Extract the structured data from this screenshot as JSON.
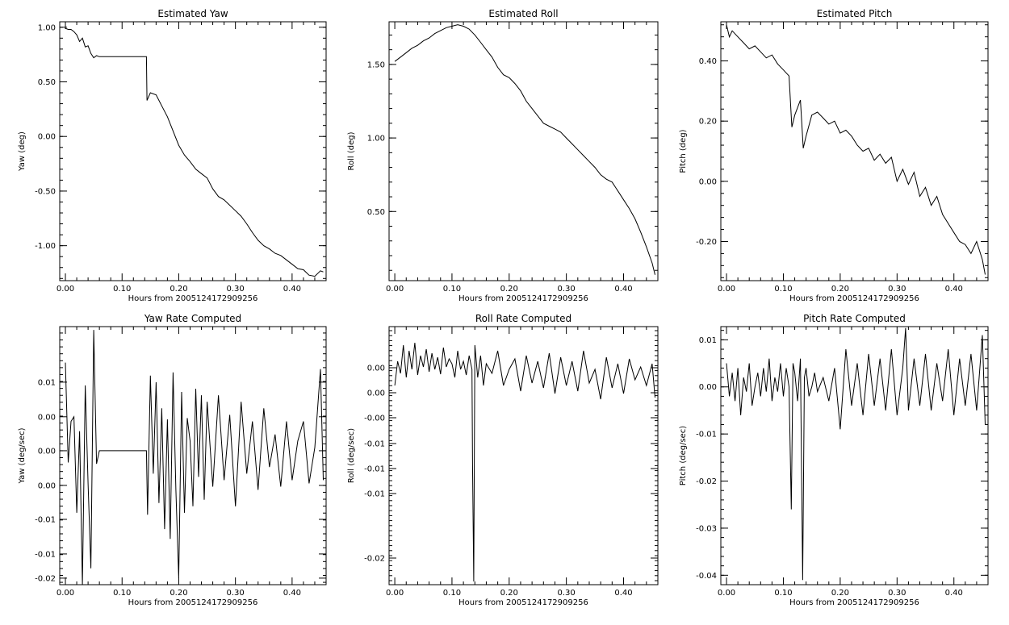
{
  "chart_data": [
    {
      "type": "line",
      "title": "Estimated Yaw",
      "xlabel": "Hours from 2005124172909256",
      "ylabel": "Yaw (deg)",
      "xlim": [
        -0.01,
        0.46
      ],
      "ylim": [
        -1.32,
        1.05
      ],
      "xticks": [
        "0.00",
        "0.10",
        "0.20",
        "0.30",
        "0.40"
      ],
      "xtick_values": [
        0.0,
        0.1,
        0.2,
        0.3,
        0.4
      ],
      "yticks": [
        "1.00",
        "0.50",
        "0.00",
        "-0.50",
        "-1.00"
      ],
      "ytick_values": [
        1.0,
        0.5,
        0.0,
        -0.5,
        -1.0
      ],
      "grid": false,
      "series": [
        {
          "x": [
            0.0,
            0.005,
            0.01,
            0.015,
            0.02,
            0.025,
            0.03,
            0.035,
            0.04,
            0.045,
            0.05,
            0.055,
            0.06,
            0.1,
            0.143,
            0.144,
            0.15,
            0.16,
            0.17,
            0.18,
            0.19,
            0.2,
            0.21,
            0.22,
            0.23,
            0.24,
            0.25,
            0.26,
            0.27,
            0.28,
            0.29,
            0.3,
            0.31,
            0.32,
            0.33,
            0.34,
            0.35,
            0.36,
            0.37,
            0.38,
            0.39,
            0.4,
            0.41,
            0.42,
            0.43,
            0.44,
            0.45,
            0.455
          ],
          "y": [
            0.99,
            0.98,
            0.98,
            0.96,
            0.93,
            0.87,
            0.9,
            0.82,
            0.83,
            0.76,
            0.72,
            0.74,
            0.73,
            0.73,
            0.73,
            0.33,
            0.4,
            0.38,
            0.28,
            0.18,
            0.05,
            -0.08,
            -0.17,
            -0.23,
            -0.3,
            -0.34,
            -0.38,
            -0.48,
            -0.55,
            -0.58,
            -0.63,
            -0.68,
            -0.73,
            -0.8,
            -0.88,
            -0.95,
            -1.0,
            -1.03,
            -1.07,
            -1.09,
            -1.13,
            -1.17,
            -1.21,
            -1.22,
            -1.27,
            -1.28,
            -1.23,
            -1.24
          ]
        }
      ]
    },
    {
      "type": "line",
      "title": "Estimated Roll",
      "xlabel": "Hours from 2005124172909256",
      "ylabel": "Roll (deg)",
      "xlim": [
        -0.01,
        0.46
      ],
      "ylim": [
        0.03,
        1.79
      ],
      "xticks": [
        "0.00",
        "0.10",
        "0.20",
        "0.30",
        "0.40"
      ],
      "xtick_values": [
        0.0,
        0.1,
        0.2,
        0.3,
        0.4
      ],
      "yticks": [
        "1.50",
        "1.00",
        "0.50"
      ],
      "ytick_values": [
        1.5,
        1.0,
        0.5
      ],
      "grid": false,
      "series": [
        {
          "x": [
            0.0,
            0.01,
            0.02,
            0.03,
            0.04,
            0.05,
            0.06,
            0.07,
            0.08,
            0.09,
            0.1,
            0.11,
            0.12,
            0.13,
            0.14,
            0.15,
            0.16,
            0.17,
            0.18,
            0.19,
            0.2,
            0.21,
            0.22,
            0.23,
            0.24,
            0.25,
            0.26,
            0.27,
            0.28,
            0.29,
            0.3,
            0.31,
            0.32,
            0.33,
            0.34,
            0.35,
            0.36,
            0.37,
            0.38,
            0.39,
            0.4,
            0.41,
            0.42,
            0.43,
            0.44,
            0.45,
            0.455
          ],
          "y": [
            1.52,
            1.55,
            1.58,
            1.61,
            1.63,
            1.66,
            1.68,
            1.71,
            1.73,
            1.75,
            1.76,
            1.77,
            1.76,
            1.74,
            1.7,
            1.65,
            1.6,
            1.55,
            1.48,
            1.43,
            1.41,
            1.37,
            1.32,
            1.25,
            1.2,
            1.15,
            1.1,
            1.08,
            1.06,
            1.04,
            1.0,
            0.96,
            0.92,
            0.88,
            0.84,
            0.8,
            0.75,
            0.72,
            0.7,
            0.64,
            0.58,
            0.52,
            0.45,
            0.36,
            0.26,
            0.15,
            0.07
          ]
        }
      ]
    },
    {
      "type": "line",
      "title": "Estimated Pitch",
      "xlabel": "Hours from 2005124172909256",
      "ylabel": "Pitch (deg)",
      "xlim": [
        -0.01,
        0.46
      ],
      "ylim": [
        -0.33,
        0.53
      ],
      "xticks": [
        "0.00",
        "0.10",
        "0.20",
        "0.30",
        "0.40"
      ],
      "xtick_values": [
        0.0,
        0.1,
        0.2,
        0.3,
        0.4
      ],
      "yticks": [
        "0.40",
        "0.20",
        "0.00",
        "-0.20"
      ],
      "ytick_values": [
        0.4,
        0.2,
        0.0,
        -0.2
      ],
      "grid": false,
      "series": [
        {
          "x": [
            0.0,
            0.005,
            0.01,
            0.02,
            0.03,
            0.04,
            0.05,
            0.06,
            0.07,
            0.08,
            0.09,
            0.1,
            0.11,
            0.115,
            0.12,
            0.13,
            0.135,
            0.14,
            0.15,
            0.16,
            0.17,
            0.18,
            0.19,
            0.2,
            0.21,
            0.22,
            0.23,
            0.24,
            0.25,
            0.26,
            0.27,
            0.28,
            0.29,
            0.3,
            0.31,
            0.32,
            0.33,
            0.34,
            0.35,
            0.36,
            0.37,
            0.38,
            0.39,
            0.4,
            0.41,
            0.42,
            0.43,
            0.44,
            0.45,
            0.455
          ],
          "y": [
            0.52,
            0.48,
            0.5,
            0.48,
            0.46,
            0.44,
            0.45,
            0.43,
            0.41,
            0.42,
            0.39,
            0.37,
            0.35,
            0.18,
            0.22,
            0.27,
            0.11,
            0.15,
            0.22,
            0.23,
            0.21,
            0.19,
            0.2,
            0.16,
            0.17,
            0.15,
            0.12,
            0.1,
            0.11,
            0.07,
            0.09,
            0.06,
            0.08,
            0.0,
            0.04,
            -0.01,
            0.03,
            -0.05,
            -0.02,
            -0.08,
            -0.05,
            -0.11,
            -0.14,
            -0.17,
            -0.2,
            -0.21,
            -0.24,
            -0.2,
            -0.26,
            -0.31
          ]
        }
      ]
    },
    {
      "type": "line",
      "title": "Yaw Rate Computed",
      "xlabel": "Hours from 2005124172909256",
      "ylabel": "Yaw (deg/sec)",
      "xlim": [
        -0.01,
        0.46
      ],
      "ylim": [
        -0.0205,
        0.019
      ],
      "xticks": [
        "0.00",
        "0.10",
        "0.20",
        "0.30",
        "0.40"
      ],
      "xtick_values": [
        0.0,
        0.1,
        0.2,
        0.3,
        0.4
      ],
      "yticks": [
        "0.01",
        "0.00",
        "0.00",
        "0.00",
        "-0.01",
        "-0.01",
        "-0.02"
      ],
      "ytick_values": [
        0.0105,
        0.0052,
        0.0,
        -0.0053,
        -0.0105,
        -0.0158,
        -0.0195
      ],
      "grid": false,
      "series": [
        {
          "x": [
            0.0,
            0.005,
            0.01,
            0.015,
            0.02,
            0.025,
            0.03,
            0.035,
            0.04,
            0.045,
            0.05,
            0.055,
            0.06,
            0.1,
            0.143,
            0.145,
            0.15,
            0.155,
            0.16,
            0.165,
            0.17,
            0.175,
            0.18,
            0.185,
            0.19,
            0.195,
            0.2,
            0.205,
            0.21,
            0.215,
            0.22,
            0.225,
            0.23,
            0.235,
            0.24,
            0.245,
            0.25,
            0.26,
            0.27,
            0.28,
            0.29,
            0.3,
            0.31,
            0.32,
            0.33,
            0.34,
            0.35,
            0.36,
            0.37,
            0.38,
            0.39,
            0.4,
            0.41,
            0.42,
            0.43,
            0.44,
            0.45,
            0.455
          ],
          "y": [
            0.0135,
            -0.0018,
            0.0045,
            0.0052,
            -0.0095,
            0.003,
            -0.0205,
            0.01,
            -0.005,
            -0.018,
            0.0185,
            -0.002,
            0.0,
            0.0,
            0.0,
            -0.0098,
            0.0115,
            -0.0035,
            0.0105,
            -0.008,
            0.0065,
            -0.012,
            0.0048,
            -0.0135,
            0.012,
            -0.006,
            -0.0195,
            0.009,
            -0.0095,
            0.005,
            0.0015,
            -0.0085,
            0.0095,
            -0.004,
            0.0085,
            -0.0075,
            0.0075,
            -0.0055,
            0.0085,
            -0.0045,
            0.0055,
            -0.0085,
            0.0075,
            -0.0035,
            0.0045,
            -0.006,
            0.0065,
            -0.0025,
            0.0025,
            -0.0055,
            0.0045,
            -0.0045,
            0.0015,
            0.0045,
            -0.005,
            0.0005,
            0.0125,
            -0.0045
          ]
        }
      ]
    },
    {
      "type": "line",
      "title": "Roll Rate Computed",
      "xlabel": "Hours from 2005124172909256",
      "ylabel": "Roll (deg/sec)",
      "xlim": [
        -0.01,
        0.46
      ],
      "ylim": [
        -0.0222,
        0.0098
      ],
      "xticks": [
        "0.00",
        "0.10",
        "0.20",
        "0.30",
        "0.40"
      ],
      "xtick_values": [
        0.0,
        0.1,
        0.2,
        0.3,
        0.4
      ],
      "yticks": [
        "0.00",
        "0.00",
        "-0.00",
        "-0.01",
        "-0.01",
        "-0.01",
        "-0.02"
      ],
      "ytick_values": [
        0.0047,
        0.0016,
        -0.0015,
        -0.0047,
        -0.0078,
        -0.0109,
        -0.0189
      ],
      "grid": false,
      "series": [
        {
          "x": [
            0.0,
            0.005,
            0.01,
            0.015,
            0.02,
            0.025,
            0.03,
            0.035,
            0.04,
            0.045,
            0.05,
            0.055,
            0.06,
            0.065,
            0.07,
            0.075,
            0.08,
            0.085,
            0.09,
            0.095,
            0.1,
            0.105,
            0.11,
            0.115,
            0.12,
            0.125,
            0.13,
            0.135,
            0.136,
            0.138,
            0.14,
            0.145,
            0.15,
            0.155,
            0.16,
            0.17,
            0.18,
            0.19,
            0.2,
            0.21,
            0.22,
            0.23,
            0.24,
            0.25,
            0.26,
            0.27,
            0.28,
            0.29,
            0.3,
            0.31,
            0.32,
            0.33,
            0.34,
            0.35,
            0.36,
            0.37,
            0.38,
            0.39,
            0.4,
            0.41,
            0.42,
            0.43,
            0.44,
            0.45,
            0.455
          ],
          "y": [
            0.0025,
            0.0055,
            0.004,
            0.0075,
            0.0035,
            0.0068,
            0.0045,
            0.0078,
            0.0038,
            0.0062,
            0.0048,
            0.007,
            0.0042,
            0.0065,
            0.0045,
            0.006,
            0.0039,
            0.0072,
            0.0048,
            0.0058,
            0.0052,
            0.0035,
            0.0068,
            0.0045,
            0.0055,
            0.0038,
            0.0062,
            0.0045,
            -0.0072,
            -0.0218,
            0.0075,
            0.0035,
            0.0062,
            0.0025,
            0.0052,
            0.004,
            0.0068,
            0.0025,
            0.0045,
            0.0058,
            0.0018,
            0.0062,
            0.0028,
            0.0055,
            0.0022,
            0.0065,
            0.0015,
            0.006,
            0.0025,
            0.0055,
            0.0018,
            0.0068,
            0.0028,
            0.0045,
            0.0008,
            0.006,
            0.0022,
            0.0052,
            0.0015,
            0.0058,
            0.0032,
            0.0048,
            0.0025,
            0.0052,
            0.001
          ]
        }
      ]
    },
    {
      "type": "line",
      "title": "Pitch Rate Computed",
      "xlabel": "Hours from 2005124172909256",
      "ylabel": "Pitch (deg/sec)",
      "xlim": [
        -0.01,
        0.46
      ],
      "ylim": [
        -0.042,
        0.0128
      ],
      "xticks": [
        "0.00",
        "0.10",
        "0.20",
        "0.30",
        "0.40"
      ],
      "xtick_values": [
        0.0,
        0.1,
        0.2,
        0.3,
        0.4
      ],
      "yticks": [
        "0.01",
        "0.00",
        "-0.01",
        "-0.02",
        "-0.03",
        "-0.04"
      ],
      "ytick_values": [
        0.01,
        0.0,
        -0.01,
        -0.02,
        -0.03,
        -0.04
      ],
      "grid": false,
      "series": [
        {
          "x": [
            0.0,
            0.005,
            0.01,
            0.015,
            0.02,
            0.025,
            0.03,
            0.035,
            0.04,
            0.045,
            0.05,
            0.055,
            0.06,
            0.065,
            0.07,
            0.075,
            0.08,
            0.085,
            0.09,
            0.095,
            0.1,
            0.105,
            0.11,
            0.114,
            0.117,
            0.12,
            0.125,
            0.13,
            0.134,
            0.137,
            0.14,
            0.145,
            0.15,
            0.155,
            0.16,
            0.17,
            0.18,
            0.19,
            0.2,
            0.21,
            0.22,
            0.23,
            0.24,
            0.25,
            0.26,
            0.27,
            0.28,
            0.29,
            0.3,
            0.31,
            0.315,
            0.32,
            0.33,
            0.34,
            0.35,
            0.36,
            0.37,
            0.38,
            0.39,
            0.4,
            0.41,
            0.42,
            0.43,
            0.44,
            0.45,
            0.455
          ],
          "y": [
            0.005,
            -0.002,
            0.003,
            -0.003,
            0.004,
            -0.006,
            0.002,
            -0.001,
            0.005,
            -0.004,
            0.0,
            0.003,
            -0.002,
            0.004,
            -0.001,
            0.006,
            -0.003,
            0.002,
            -0.001,
            0.005,
            -0.002,
            0.004,
            0.0,
            -0.026,
            0.005,
            0.003,
            -0.003,
            0.006,
            -0.041,
            0.002,
            0.004,
            -0.002,
            0.0,
            0.003,
            -0.001,
            0.002,
            -0.003,
            0.004,
            -0.009,
            0.008,
            -0.004,
            0.005,
            -0.006,
            0.007,
            -0.004,
            0.006,
            -0.005,
            0.008,
            -0.006,
            0.004,
            0.0125,
            -0.005,
            0.006,
            -0.004,
            0.007,
            -0.005,
            0.005,
            -0.003,
            0.008,
            -0.006,
            0.006,
            -0.004,
            0.007,
            -0.005,
            0.011,
            -0.008
          ]
        }
      ]
    }
  ]
}
